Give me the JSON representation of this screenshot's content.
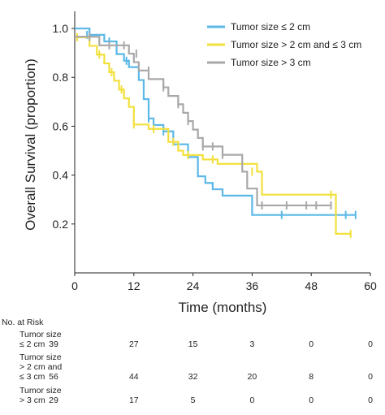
{
  "chart_data": {
    "type": "line",
    "subtype": "kaplan-meier",
    "title": "",
    "xlabel": "Time (months)",
    "ylabel": "Overall Survival (proportion)",
    "xlim": [
      0,
      60
    ],
    "ylim": [
      0,
      1.05
    ],
    "xticks": [
      0,
      12,
      24,
      36,
      48,
      60
    ],
    "yticks": [
      0.2,
      0.4,
      0.6,
      0.8,
      1.0
    ],
    "xtick_labels": [
      "0",
      "12",
      "24",
      "36",
      "48",
      "60"
    ],
    "ytick_labels": [
      "0.2",
      "0.4",
      "0.6",
      "0.8",
      "1.0"
    ],
    "grid": false,
    "legend_position": "top-right",
    "series": [
      {
        "name": "Tumor size ≤ 2 cm",
        "color": "#5BB8E8",
        "steps": [
          [
            0,
            1.0
          ],
          [
            3,
            0.974
          ],
          [
            6,
            0.947
          ],
          [
            8.5,
            0.895
          ],
          [
            10,
            0.868
          ],
          [
            11,
            0.842
          ],
          [
            13,
            0.789
          ],
          [
            14,
            0.711
          ],
          [
            15,
            0.632
          ],
          [
            16,
            0.605
          ],
          [
            18,
            0.579
          ],
          [
            20,
            0.526
          ],
          [
            23,
            0.474
          ],
          [
            25,
            0.395
          ],
          [
            26.5,
            0.368
          ],
          [
            28,
            0.342
          ],
          [
            30,
            0.316
          ],
          [
            36,
            0.237
          ],
          [
            57,
            0.237
          ]
        ],
        "censored": [
          [
            2.5,
            0.974
          ],
          [
            7,
            0.947
          ],
          [
            10.5,
            0.868
          ],
          [
            15,
            0.632
          ],
          [
            18,
            0.579
          ],
          [
            42,
            0.237
          ],
          [
            55,
            0.237
          ],
          [
            57,
            0.237
          ]
        ]
      },
      {
        "name": "Tumor size > 2 cm and ≤ 3 cm",
        "color": "#F2E03C",
        "steps": [
          [
            0,
            0.964
          ],
          [
            3,
            0.929
          ],
          [
            4.5,
            0.893
          ],
          [
            6,
            0.857
          ],
          [
            7,
            0.821
          ],
          [
            8,
            0.786
          ],
          [
            9,
            0.75
          ],
          [
            10,
            0.714
          ],
          [
            11,
            0.679
          ],
          [
            12,
            0.607
          ],
          [
            15,
            0.589
          ],
          [
            19,
            0.536
          ],
          [
            21,
            0.5
          ],
          [
            22,
            0.482
          ],
          [
            26,
            0.464
          ],
          [
            29,
            0.446
          ],
          [
            37,
            0.414
          ],
          [
            38,
            0.32
          ],
          [
            52,
            0.32
          ],
          [
            53,
            0.16
          ],
          [
            56,
            0.16
          ]
        ],
        "censored": [
          [
            0.5,
            0.964
          ],
          [
            5,
            0.893
          ],
          [
            7.5,
            0.821
          ],
          [
            9.5,
            0.75
          ],
          [
            12,
            0.607
          ],
          [
            16,
            0.589
          ],
          [
            20,
            0.536
          ],
          [
            23,
            0.482
          ],
          [
            28,
            0.464
          ],
          [
            36,
            0.414
          ],
          [
            52,
            0.32
          ],
          [
            56,
            0.16
          ]
        ]
      },
      {
        "name": "Tumor size > 3 cm",
        "color": "#A8A8A8",
        "steps": [
          [
            0,
            0.966
          ],
          [
            5,
            0.931
          ],
          [
            11,
            0.897
          ],
          [
            12,
            0.862
          ],
          [
            13,
            0.828
          ],
          [
            15,
            0.793
          ],
          [
            18,
            0.759
          ],
          [
            19,
            0.724
          ],
          [
            21,
            0.69
          ],
          [
            22,
            0.655
          ],
          [
            23,
            0.621
          ],
          [
            24,
            0.586
          ],
          [
            25,
            0.552
          ],
          [
            26,
            0.517
          ],
          [
            30,
            0.483
          ],
          [
            34,
            0.414
          ],
          [
            35,
            0.345
          ],
          [
            37,
            0.276
          ],
          [
            52,
            0.276
          ]
        ],
        "censored": [
          [
            3,
            0.966
          ],
          [
            7,
            0.931
          ],
          [
            10,
            0.931
          ],
          [
            12.5,
            0.897
          ],
          [
            15,
            0.828
          ],
          [
            18,
            0.759
          ],
          [
            21,
            0.69
          ],
          [
            23,
            0.621
          ],
          [
            26,
            0.517
          ],
          [
            28,
            0.517
          ],
          [
            30,
            0.483
          ],
          [
            38,
            0.276
          ],
          [
            43,
            0.276
          ],
          [
            47,
            0.276
          ],
          [
            49,
            0.276
          ],
          [
            52,
            0.276
          ]
        ]
      }
    ]
  },
  "risk_table": {
    "heading": "No. at Risk",
    "time_points": [
      0,
      12,
      24,
      36,
      48,
      60
    ],
    "rows": [
      {
        "label_lines": [
          "Tumor size",
          "≤ 2 cm"
        ],
        "values": [
          "39",
          "27",
          "15",
          "3",
          "0",
          "0"
        ]
      },
      {
        "label_lines": [
          "Tumor size",
          "> 2 cm and",
          "≤ 3 cm"
        ],
        "values": [
          "56",
          "44",
          "32",
          "20",
          "8",
          "0"
        ]
      },
      {
        "label_lines": [
          "Tumor size",
          "> 3 cm"
        ],
        "values": [
          "29",
          "17",
          "5",
          "0",
          "0",
          "0"
        ]
      }
    ]
  }
}
